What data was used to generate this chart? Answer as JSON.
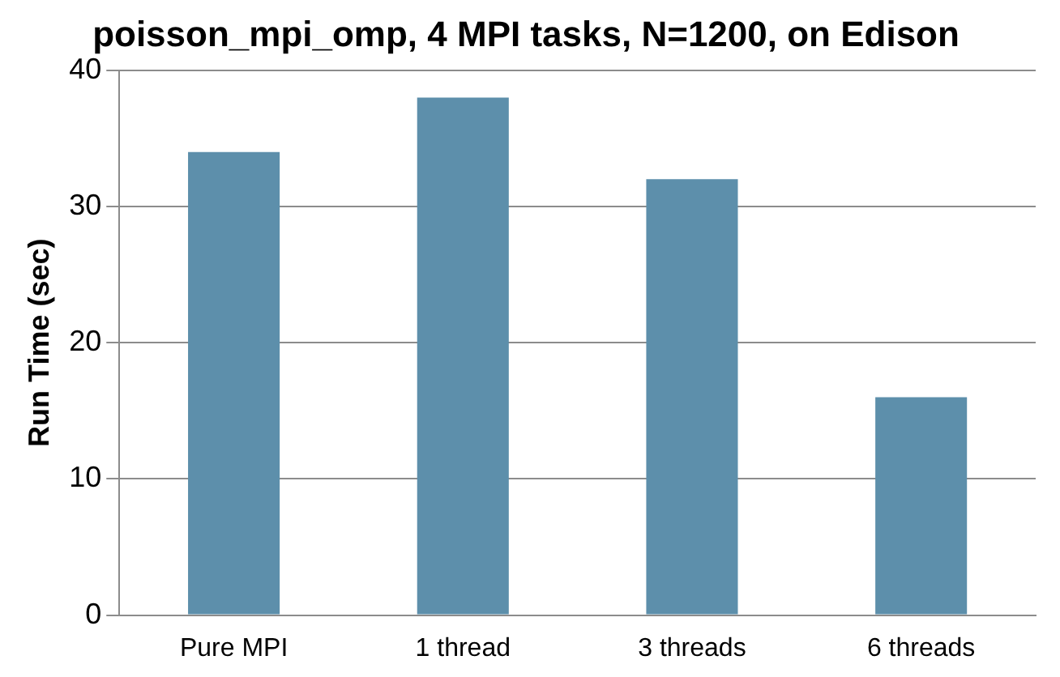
{
  "chart_data": {
    "type": "bar",
    "title": "poisson_mpi_omp, 4 MPI tasks, N=1200, on Edison",
    "ylabel": "Run Time (sec)",
    "categories": [
      "Pure MPI",
      "1 thread",
      "3 threads",
      "6 threads"
    ],
    "values": [
      34,
      38,
      32,
      16
    ],
    "color": "#5d8fab",
    "ylim": [
      0,
      40
    ],
    "yticks": [
      0,
      10,
      20,
      30,
      40
    ],
    "grid": "y"
  }
}
